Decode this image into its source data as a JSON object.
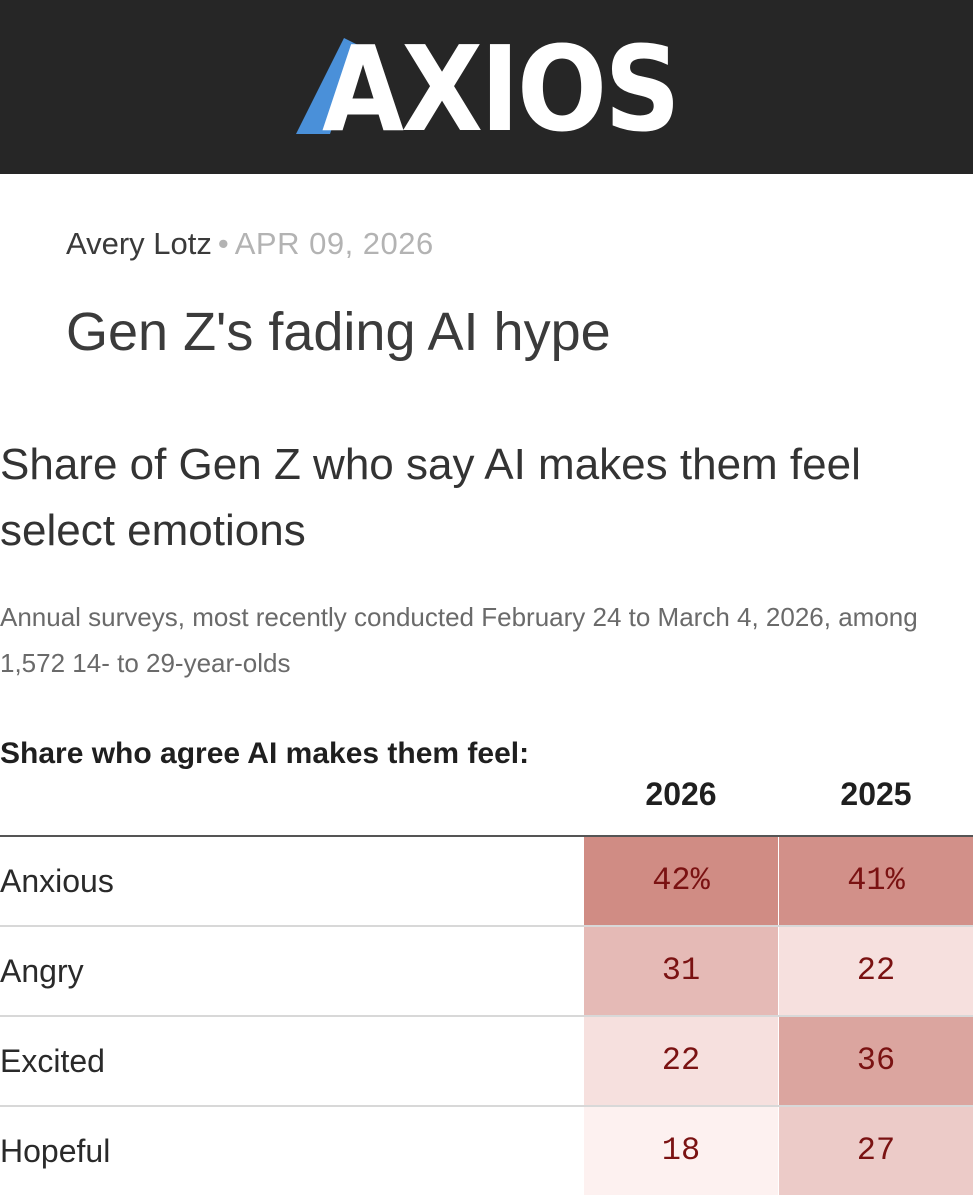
{
  "brand": {
    "logo_text": "AXIOS"
  },
  "article": {
    "author": "Avery Lotz",
    "separator": "•",
    "date": "APR 09, 2026",
    "headline": "Gen Z's fading AI hype"
  },
  "chart_data": {
    "type": "table",
    "title": "Share of Gen Z who say AI makes them feel select emotions",
    "subtitle": "Annual surveys, most recently conducted February 24 to March 4, 2026, among 1,572 14- to 29-year-olds",
    "row_header": "Share who agree AI makes them feel:",
    "columns": [
      "2026",
      "2025"
    ],
    "rows": [
      {
        "label": "Anxious",
        "values": [
          42,
          41
        ],
        "display": [
          "42%",
          "41%"
        ]
      },
      {
        "label": "Angry",
        "values": [
          31,
          22
        ],
        "display": [
          "31",
          "22"
        ]
      },
      {
        "label": "Excited",
        "values": [
          22,
          36
        ],
        "display": [
          "22",
          "36"
        ]
      },
      {
        "label": "Hopeful",
        "values": [
          18,
          27
        ],
        "display": [
          "18",
          "27"
        ]
      }
    ],
    "color_scale": {
      "low": "#fdf1f0",
      "high": "#d08c84"
    }
  },
  "colors": {
    "masthead_bg": "#262626",
    "logo_accent": "#4a90d9",
    "logo_text": "#ffffff",
    "value_text": "#7a1212"
  }
}
